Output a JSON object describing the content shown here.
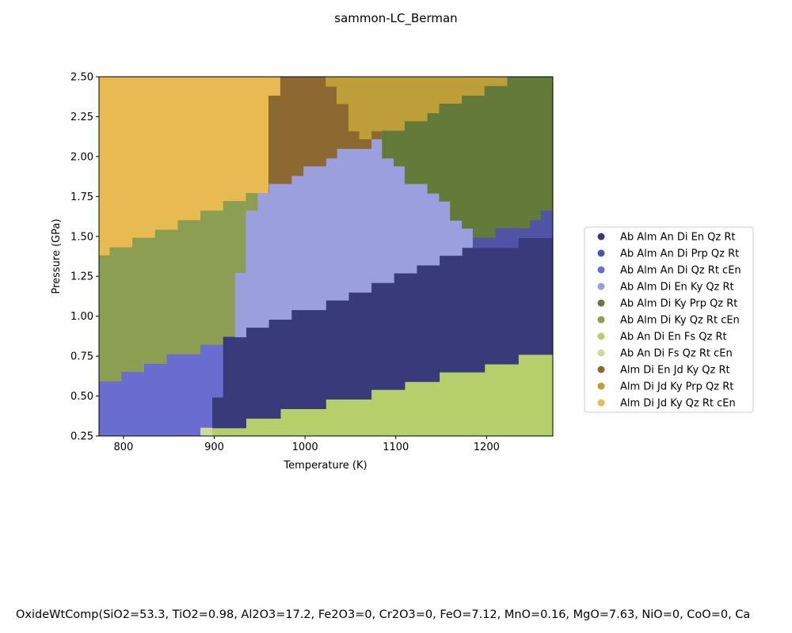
{
  "chart_data": {
    "type": "heatmap",
    "title": "sammon-LC_Berman",
    "xlabel": "Temperature (K)",
    "ylabel": "Pressure (GPa)",
    "xlim": [
      773,
      1273
    ],
    "ylim": [
      0.25,
      2.5
    ],
    "x_ticks": [
      "800",
      "900",
      "1000",
      "1100",
      "1200"
    ],
    "y_ticks": [
      "0.25",
      "0.50",
      "0.75",
      "1.00",
      "1.25",
      "1.50",
      "1.75",
      "2.00",
      "2.25",
      "2.50"
    ],
    "grid": false,
    "legend_position": "right",
    "legend": [
      {
        "label": "Ab Alm An Di En Qz Rt",
        "color": "#383a7a"
      },
      {
        "label": "Ab Alm An Di Prp Qz Rt",
        "color": "#5153a6"
      },
      {
        "label": "Ab Alm An Di Qz Rt cEn",
        "color": "#6b6ccf"
      },
      {
        "label": "Ab Alm Di En Ky Qz Rt",
        "color": "#9c9fde"
      },
      {
        "label": "Ab Alm Di Ky Prp Qz Rt",
        "color": "#637a39"
      },
      {
        "label": "Ab Alm Di Ky Qz Rt cEn",
        "color": "#8b9e51"
      },
      {
        "label": "Ab An Di En Fs Qz Rt",
        "color": "#b5cf6b"
      },
      {
        "label": "Ab An Di Fs Qz Rt cEn",
        "color": "#cedb9c"
      },
      {
        "label": "Alm Di En Jd Ky Qz Rt",
        "color": "#8b6931"
      },
      {
        "label": "Alm Di Jd Ky Prp Qz Rt",
        "color": "#bd9e39"
      },
      {
        "label": "Alm Di Jd Ky Qz Rt cEn",
        "color": "#e8ba52"
      }
    ],
    "regions": [
      {
        "phase": 10,
        "points": [
          [
            773,
            2.5
          ],
          [
            973,
            2.5
          ],
          [
            973,
            2.38
          ],
          [
            960,
            2.38
          ],
          [
            960,
            1.77
          ],
          [
            948,
            1.77
          ],
          [
            948,
            1.72
          ],
          [
            910,
            1.72
          ],
          [
            910,
            1.66
          ],
          [
            885,
            1.66
          ],
          [
            885,
            1.6
          ],
          [
            860,
            1.6
          ],
          [
            860,
            1.54
          ],
          [
            835,
            1.54
          ],
          [
            835,
            1.49
          ],
          [
            810,
            1.49
          ],
          [
            810,
            1.43
          ],
          [
            785,
            1.43
          ],
          [
            785,
            1.38
          ],
          [
            773,
            1.38
          ]
        ]
      },
      {
        "phase": 5,
        "points": [
          [
            773,
            1.38
          ],
          [
            785,
            1.38
          ],
          [
            785,
            1.43
          ],
          [
            810,
            1.43
          ],
          [
            810,
            1.49
          ],
          [
            835,
            1.49
          ],
          [
            835,
            1.54
          ],
          [
            860,
            1.54
          ],
          [
            860,
            1.6
          ],
          [
            885,
            1.6
          ],
          [
            885,
            1.66
          ],
          [
            910,
            1.66
          ],
          [
            910,
            1.72
          ],
          [
            935,
            1.72
          ],
          [
            935,
            1.77
          ],
          [
            948,
            1.77
          ],
          [
            948,
            1.66
          ],
          [
            935,
            1.66
          ],
          [
            935,
            1.27
          ],
          [
            923,
            1.27
          ],
          [
            923,
            0.82
          ],
          [
            910,
            0.82
          ],
          [
            910,
            0.82
          ],
          [
            885,
            0.82
          ],
          [
            885,
            0.76
          ],
          [
            848,
            0.76
          ],
          [
            848,
            0.7
          ],
          [
            823,
            0.7
          ],
          [
            823,
            0.65
          ],
          [
            798,
            0.65
          ],
          [
            798,
            0.59
          ],
          [
            773,
            0.59
          ]
        ]
      },
      {
        "phase": 2,
        "points": [
          [
            773,
            0.59
          ],
          [
            798,
            0.59
          ],
          [
            798,
            0.65
          ],
          [
            823,
            0.65
          ],
          [
            823,
            0.7
          ],
          [
            848,
            0.7
          ],
          [
            848,
            0.76
          ],
          [
            885,
            0.76
          ],
          [
            885,
            0.82
          ],
          [
            910,
            0.82
          ],
          [
            910,
            0.49
          ],
          [
            898,
            0.49
          ],
          [
            898,
            0.25
          ],
          [
            773,
            0.25
          ]
        ]
      },
      {
        "phase": 7,
        "points": [
          [
            885,
            0.25
          ],
          [
            898,
            0.25
          ],
          [
            898,
            0.3
          ],
          [
            885,
            0.3
          ]
        ]
      },
      {
        "phase": 6,
        "points": [
          [
            898,
            0.25
          ],
          [
            1273,
            0.25
          ],
          [
            1273,
            0.76
          ],
          [
            1235,
            0.76
          ],
          [
            1235,
            0.7
          ],
          [
            1198,
            0.7
          ],
          [
            1198,
            0.65
          ],
          [
            1148,
            0.65
          ],
          [
            1148,
            0.59
          ],
          [
            1110,
            0.59
          ],
          [
            1110,
            0.54
          ],
          [
            1073,
            0.54
          ],
          [
            1073,
            0.48
          ],
          [
            1023,
            0.48
          ],
          [
            1023,
            0.42
          ],
          [
            973,
            0.42
          ],
          [
            973,
            0.36
          ],
          [
            935,
            0.36
          ],
          [
            935,
            0.3
          ],
          [
            898,
            0.3
          ]
        ]
      },
      {
        "phase": 0,
        "points": [
          [
            898,
            0.3
          ],
          [
            935,
            0.3
          ],
          [
            935,
            0.36
          ],
          [
            973,
            0.36
          ],
          [
            973,
            0.42
          ],
          [
            1023,
            0.42
          ],
          [
            1023,
            0.48
          ],
          [
            1073,
            0.48
          ],
          [
            1073,
            0.54
          ],
          [
            1110,
            0.54
          ],
          [
            1110,
            0.59
          ],
          [
            1148,
            0.59
          ],
          [
            1148,
            0.65
          ],
          [
            1198,
            0.65
          ],
          [
            1198,
            0.7
          ],
          [
            1235,
            0.7
          ],
          [
            1235,
            0.76
          ],
          [
            1273,
            0.76
          ],
          [
            1273,
            1.49
          ],
          [
            1235,
            1.49
          ],
          [
            1235,
            1.43
          ],
          [
            1173,
            1.43
          ],
          [
            1173,
            1.38
          ],
          [
            1148,
            1.38
          ],
          [
            1148,
            1.32
          ],
          [
            1123,
            1.32
          ],
          [
            1123,
            1.27
          ],
          [
            1098,
            1.27
          ],
          [
            1098,
            1.21
          ],
          [
            1073,
            1.21
          ],
          [
            1073,
            1.15
          ],
          [
            1048,
            1.15
          ],
          [
            1048,
            1.1
          ],
          [
            1023,
            1.1
          ],
          [
            1023,
            1.04
          ],
          [
            985,
            1.04
          ],
          [
            985,
            0.98
          ],
          [
            960,
            0.98
          ],
          [
            960,
            0.93
          ],
          [
            935,
            0.93
          ],
          [
            935,
            0.87
          ],
          [
            910,
            0.87
          ],
          [
            910,
            0.49
          ],
          [
            898,
            0.49
          ]
        ]
      },
      {
        "phase": 3,
        "points": [
          [
            923,
            0.87
          ],
          [
            935,
            0.87
          ],
          [
            935,
            0.93
          ],
          [
            960,
            0.93
          ],
          [
            960,
            0.98
          ],
          [
            985,
            0.98
          ],
          [
            985,
            1.04
          ],
          [
            1023,
            1.04
          ],
          [
            1023,
            1.1
          ],
          [
            1048,
            1.1
          ],
          [
            1048,
            1.15
          ],
          [
            1073,
            1.15
          ],
          [
            1073,
            1.21
          ],
          [
            1098,
            1.21
          ],
          [
            1098,
            1.27
          ],
          [
            1123,
            1.27
          ],
          [
            1123,
            1.32
          ],
          [
            1148,
            1.32
          ],
          [
            1148,
            1.38
          ],
          [
            1173,
            1.38
          ],
          [
            1173,
            1.43
          ],
          [
            1185,
            1.43
          ],
          [
            1185,
            1.55
          ],
          [
            1173,
            1.55
          ],
          [
            1173,
            1.6
          ],
          [
            1160,
            1.6
          ],
          [
            1160,
            1.72
          ],
          [
            1148,
            1.72
          ],
          [
            1148,
            1.77
          ],
          [
            1135,
            1.77
          ],
          [
            1135,
            1.83
          ],
          [
            1110,
            1.83
          ],
          [
            1110,
            1.94
          ],
          [
            1098,
            1.94
          ],
          [
            1098,
            1.99
          ],
          [
            1085,
            1.99
          ],
          [
            1085,
            2.11
          ],
          [
            1073,
            2.11
          ],
          [
            1073,
            2.05
          ],
          [
            1035,
            2.05
          ],
          [
            1035,
            1.99
          ],
          [
            1023,
            1.99
          ],
          [
            1023,
            1.94
          ],
          [
            998,
            1.94
          ],
          [
            998,
            1.88
          ],
          [
            985,
            1.88
          ],
          [
            985,
            1.83
          ],
          [
            960,
            1.83
          ],
          [
            960,
            1.77
          ],
          [
            948,
            1.77
          ],
          [
            948,
            1.66
          ],
          [
            935,
            1.66
          ],
          [
            935,
            1.27
          ],
          [
            923,
            1.27
          ]
        ]
      },
      {
        "phase": 8,
        "points": [
          [
            960,
            1.77
          ],
          [
            960,
            2.38
          ],
          [
            973,
            2.38
          ],
          [
            973,
            2.5
          ],
          [
            1023,
            2.5
          ],
          [
            1023,
            2.44
          ],
          [
            1035,
            2.44
          ],
          [
            1035,
            2.33
          ],
          [
            1048,
            2.33
          ],
          [
            1048,
            2.22
          ],
          [
            1060,
            2.22
          ],
          [
            1060,
            2.16
          ],
          [
            1085,
            2.16
          ],
          [
            1085,
            2.11
          ],
          [
            1073,
            2.11
          ],
          [
            1073,
            2.05
          ],
          [
            1035,
            2.05
          ],
          [
            1035,
            1.99
          ],
          [
            1023,
            1.99
          ],
          [
            1023,
            1.94
          ],
          [
            998,
            1.94
          ],
          [
            998,
            1.88
          ],
          [
            985,
            1.88
          ],
          [
            985,
            1.83
          ],
          [
            960,
            1.83
          ]
        ]
      },
      {
        "phase": 9,
        "points": [
          [
            1023,
            2.5
          ],
          [
            1223,
            2.5
          ],
          [
            1223,
            2.44
          ],
          [
            1198,
            2.44
          ],
          [
            1198,
            2.38
          ],
          [
            1173,
            2.38
          ],
          [
            1173,
            2.33
          ],
          [
            1148,
            2.33
          ],
          [
            1148,
            2.27
          ],
          [
            1135,
            2.27
          ],
          [
            1135,
            2.22
          ],
          [
            1110,
            2.22
          ],
          [
            1110,
            2.16
          ],
          [
            1073,
            2.16
          ],
          [
            1073,
            2.11
          ],
          [
            1060,
            2.11
          ],
          [
            1060,
            2.16
          ],
          [
            1048,
            2.16
          ],
          [
            1048,
            2.33
          ],
          [
            1035,
            2.33
          ],
          [
            1035,
            2.44
          ],
          [
            1023,
            2.44
          ]
        ]
      },
      {
        "phase": 4,
        "points": [
          [
            1223,
            2.5
          ],
          [
            1273,
            2.5
          ],
          [
            1273,
            1.66
          ],
          [
            1260,
            1.66
          ],
          [
            1260,
            1.6
          ],
          [
            1248,
            1.6
          ],
          [
            1248,
            1.55
          ],
          [
            1210,
            1.55
          ],
          [
            1210,
            1.49
          ],
          [
            1185,
            1.49
          ],
          [
            1185,
            1.55
          ],
          [
            1173,
            1.55
          ],
          [
            1173,
            1.6
          ],
          [
            1160,
            1.6
          ],
          [
            1160,
            1.72
          ],
          [
            1148,
            1.72
          ],
          [
            1148,
            1.77
          ],
          [
            1135,
            1.77
          ],
          [
            1135,
            1.83
          ],
          [
            1110,
            1.83
          ],
          [
            1110,
            1.94
          ],
          [
            1098,
            1.94
          ],
          [
            1098,
            1.99
          ],
          [
            1085,
            1.99
          ],
          [
            1085,
            2.16
          ],
          [
            1110,
            2.16
          ],
          [
            1110,
            2.22
          ],
          [
            1135,
            2.22
          ],
          [
            1135,
            2.27
          ],
          [
            1148,
            2.27
          ],
          [
            1148,
            2.33
          ],
          [
            1173,
            2.33
          ],
          [
            1173,
            2.38
          ],
          [
            1198,
            2.38
          ],
          [
            1198,
            2.44
          ],
          [
            1223,
            2.44
          ]
        ]
      },
      {
        "phase": 1,
        "points": [
          [
            1185,
            1.43
          ],
          [
            1235,
            1.43
          ],
          [
            1235,
            1.49
          ],
          [
            1273,
            1.49
          ],
          [
            1273,
            1.66
          ],
          [
            1260,
            1.66
          ],
          [
            1260,
            1.6
          ],
          [
            1248,
            1.6
          ],
          [
            1248,
            1.55
          ],
          [
            1210,
            1.55
          ],
          [
            1210,
            1.49
          ],
          [
            1185,
            1.49
          ]
        ]
      }
    ]
  },
  "footer_text": "OxideWtComp(SiO2=53.3, TiO2=0.98, Al2O3=17.2, Fe2O3=0, Cr2O3=0, FeO=7.12, MnO=0.16, MgO=7.63, NiO=0, CoO=0, Ca"
}
